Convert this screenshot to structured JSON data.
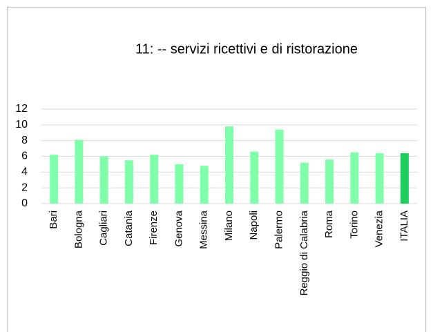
{
  "chart_data": {
    "type": "bar",
    "title": "11: -- servizi ricettivi e di ristorazione",
    "categories": [
      "Bari",
      "Bologna",
      "Cagliari",
      "Catania",
      "Firenze",
      "Genova",
      "Messina",
      "Milano",
      "Napoli",
      "Palermo",
      "Reggio di Calabria",
      "Roma",
      "Torino",
      "Venezia",
      "ITALIA"
    ],
    "values": [
      6.2,
      8.1,
      6.0,
      5.5,
      6.2,
      5.0,
      4.8,
      9.8,
      6.6,
      9.4,
      5.2,
      5.6,
      6.5,
      6.4,
      6.4
    ],
    "colors": [
      "#80ffaa",
      "#80ffaa",
      "#80ffaa",
      "#80ffaa",
      "#80ffaa",
      "#80ffaa",
      "#80ffaa",
      "#80ffaa",
      "#80ffaa",
      "#80ffaa",
      "#80ffaa",
      "#80ffaa",
      "#80ffaa",
      "#80ffaa",
      "#1ecf5e"
    ],
    "ylim": [
      0,
      12
    ],
    "yticks": [
      0,
      2,
      4,
      6,
      8,
      10,
      12
    ],
    "grid": true
  }
}
